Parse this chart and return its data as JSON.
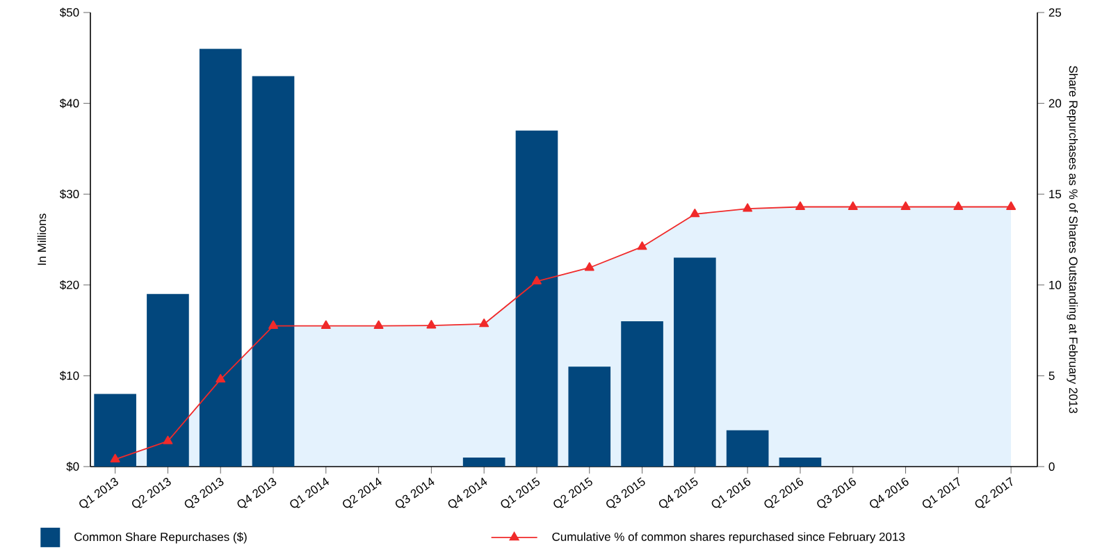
{
  "chart_data": {
    "type": "bar",
    "ylabel": "In Millions",
    "y2label": "Share Repurchases as % of Shares Outstanding at February 2013",
    "categories": [
      "Q1 2013",
      "Q2 2013",
      "Q3 2013",
      "Q4 2013",
      "Q1 2014",
      "Q2 2014",
      "Q3 2014",
      "Q4 2014",
      "Q1 2015",
      "Q2 2015",
      "Q3 2015",
      "Q4 2015",
      "Q1 2016",
      "Q2 2016",
      "Q3 2016",
      "Q4 2016",
      "Q1 2017",
      "Q2 2017"
    ],
    "series": [
      {
        "name": "Common Share Repurchases ($)",
        "color": "#02477d",
        "values": [
          8,
          19,
          46,
          43,
          0,
          0,
          0,
          1,
          37,
          11,
          16,
          23,
          4,
          1,
          0,
          0,
          0,
          0
        ]
      },
      {
        "name": "Cumulative % of common shares repurchased since February 2013",
        "type": "area",
        "axis": "y2",
        "color": "#f02a2a",
        "marker": "triangle",
        "line_style": "solid",
        "values": [
          0.4,
          1.4,
          4.8,
          7.75,
          7.75,
          7.75,
          7.77,
          7.85,
          10.2,
          10.95,
          12.1,
          13.9,
          14.2,
          14.3,
          14.3,
          14.3,
          14.3,
          14.3
        ]
      }
    ],
    "ylim": [
      0,
      50
    ],
    "yticks": [
      {
        "value": 0,
        "label": "$0"
      },
      {
        "value": 10,
        "label": "$10"
      },
      {
        "value": 20,
        "label": "$20"
      },
      {
        "value": 30,
        "label": "$30"
      },
      {
        "value": 40,
        "label": "$40"
      },
      {
        "value": 50,
        "label": "$50"
      }
    ],
    "y2lim": [
      0,
      25
    ],
    "y2ticks": [
      0,
      5,
      10,
      15,
      20,
      25
    ],
    "grid": false,
    "legend": "bottom"
  }
}
